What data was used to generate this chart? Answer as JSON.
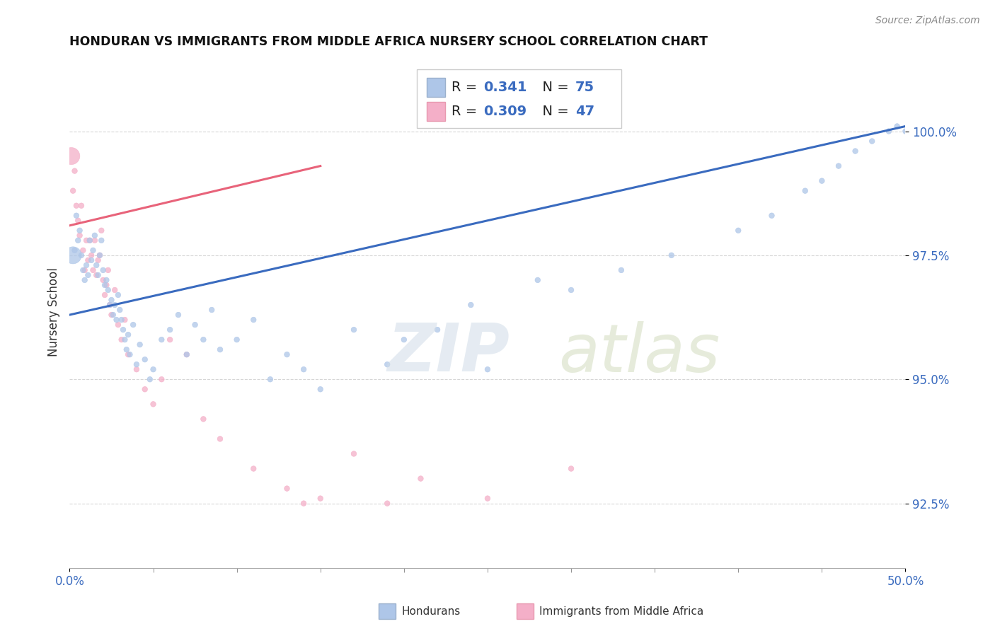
{
  "title": "HONDURAN VS IMMIGRANTS FROM MIDDLE AFRICA NURSERY SCHOOL CORRELATION CHART",
  "source": "Source: ZipAtlas.com",
  "ylabel": "Nursery School",
  "xlim": [
    0.0,
    50.0
  ],
  "ylim": [
    91.2,
    101.5
  ],
  "yticks": [
    92.5,
    95.0,
    97.5,
    100.0
  ],
  "ytick_labels": [
    "92.5%",
    "95.0%",
    "97.5%",
    "100.0%"
  ],
  "blue_color": "#aec6e8",
  "pink_color": "#f4afc8",
  "line_blue": "#3a6bbf",
  "line_pink": "#e8637a",
  "blue_line_x": [
    0,
    50
  ],
  "blue_line_y": [
    96.3,
    100.1
  ],
  "pink_line_x": [
    0,
    15
  ],
  "pink_line_y": [
    98.1,
    99.3
  ],
  "hond_x": [
    0.3,
    0.4,
    0.5,
    0.6,
    0.7,
    0.8,
    0.9,
    1.0,
    1.1,
    1.2,
    1.3,
    1.4,
    1.5,
    1.6,
    1.7,
    1.8,
    1.9,
    2.0,
    2.1,
    2.2,
    2.3,
    2.4,
    2.5,
    2.6,
    2.7,
    2.8,
    2.9,
    3.0,
    3.1,
    3.2,
    3.3,
    3.4,
    3.5,
    3.6,
    3.8,
    4.0,
    4.2,
    4.5,
    4.8,
    5.0,
    5.5,
    6.0,
    6.5,
    7.0,
    7.5,
    8.0,
    8.5,
    9.0,
    10.0,
    11.0,
    12.0,
    13.0,
    14.0,
    15.0,
    17.0,
    19.0,
    20.0,
    22.0,
    24.0,
    25.0,
    28.0,
    30.0,
    33.0,
    36.0,
    40.0,
    42.0,
    44.0,
    45.0,
    46.0,
    47.0,
    48.0,
    49.0,
    49.5,
    50.0,
    0.2
  ],
  "hond_y": [
    97.6,
    98.3,
    97.8,
    98.0,
    97.5,
    97.2,
    97.0,
    97.3,
    97.1,
    97.8,
    97.4,
    97.6,
    97.9,
    97.3,
    97.1,
    97.5,
    97.8,
    97.2,
    96.9,
    97.0,
    96.8,
    96.5,
    96.6,
    96.3,
    96.5,
    96.2,
    96.7,
    96.4,
    96.2,
    96.0,
    95.8,
    95.6,
    95.9,
    95.5,
    96.1,
    95.3,
    95.7,
    95.4,
    95.0,
    95.2,
    95.8,
    96.0,
    96.3,
    95.5,
    96.1,
    95.8,
    96.4,
    95.6,
    95.8,
    96.2,
    95.0,
    95.5,
    95.2,
    94.8,
    96.0,
    95.3,
    95.8,
    96.0,
    96.5,
    95.2,
    97.0,
    96.8,
    97.2,
    97.5,
    98.0,
    98.3,
    98.8,
    99.0,
    99.3,
    99.6,
    99.8,
    100.0,
    100.1,
    100.0,
    97.5
  ],
  "hond_size": [
    30,
    30,
    30,
    30,
    30,
    30,
    30,
    30,
    30,
    30,
    30,
    30,
    30,
    30,
    30,
    30,
    30,
    30,
    30,
    30,
    30,
    30,
    30,
    30,
    30,
    30,
    30,
    30,
    30,
    30,
    30,
    30,
    30,
    30,
    30,
    30,
    30,
    30,
    30,
    30,
    30,
    30,
    30,
    30,
    30,
    30,
    30,
    30,
    30,
    30,
    30,
    30,
    30,
    30,
    30,
    30,
    30,
    30,
    30,
    30,
    30,
    30,
    30,
    30,
    30,
    30,
    30,
    30,
    30,
    30,
    30,
    30,
    30,
    30,
    300
  ],
  "africa_x": [
    0.2,
    0.3,
    0.4,
    0.5,
    0.6,
    0.7,
    0.8,
    0.9,
    1.0,
    1.1,
    1.2,
    1.3,
    1.4,
    1.5,
    1.6,
    1.7,
    1.8,
    1.9,
    2.0,
    2.1,
    2.2,
    2.3,
    2.4,
    2.5,
    2.7,
    2.9,
    3.1,
    3.3,
    3.5,
    4.0,
    4.5,
    5.0,
    5.5,
    6.0,
    7.0,
    8.0,
    9.0,
    11.0,
    13.0,
    14.0,
    15.0,
    17.0,
    19.0,
    21.0,
    25.0,
    30.0,
    0.1
  ],
  "africa_y": [
    98.8,
    99.2,
    98.5,
    98.2,
    97.9,
    98.5,
    97.6,
    97.2,
    97.8,
    97.4,
    97.8,
    97.5,
    97.2,
    97.8,
    97.1,
    97.4,
    97.5,
    98.0,
    97.0,
    96.7,
    96.9,
    97.2,
    96.5,
    96.3,
    96.8,
    96.1,
    95.8,
    96.2,
    95.5,
    95.2,
    94.8,
    94.5,
    95.0,
    95.8,
    95.5,
    94.2,
    93.8,
    93.2,
    92.8,
    92.5,
    92.6,
    93.5,
    92.5,
    93.0,
    92.6,
    93.2,
    99.5
  ],
  "africa_size": [
    30,
    30,
    30,
    30,
    30,
    30,
    30,
    30,
    30,
    30,
    30,
    30,
    30,
    30,
    30,
    30,
    30,
    30,
    30,
    30,
    30,
    30,
    30,
    30,
    30,
    30,
    30,
    30,
    30,
    30,
    30,
    30,
    30,
    30,
    30,
    30,
    30,
    30,
    30,
    30,
    30,
    30,
    30,
    30,
    30,
    30,
    300
  ]
}
